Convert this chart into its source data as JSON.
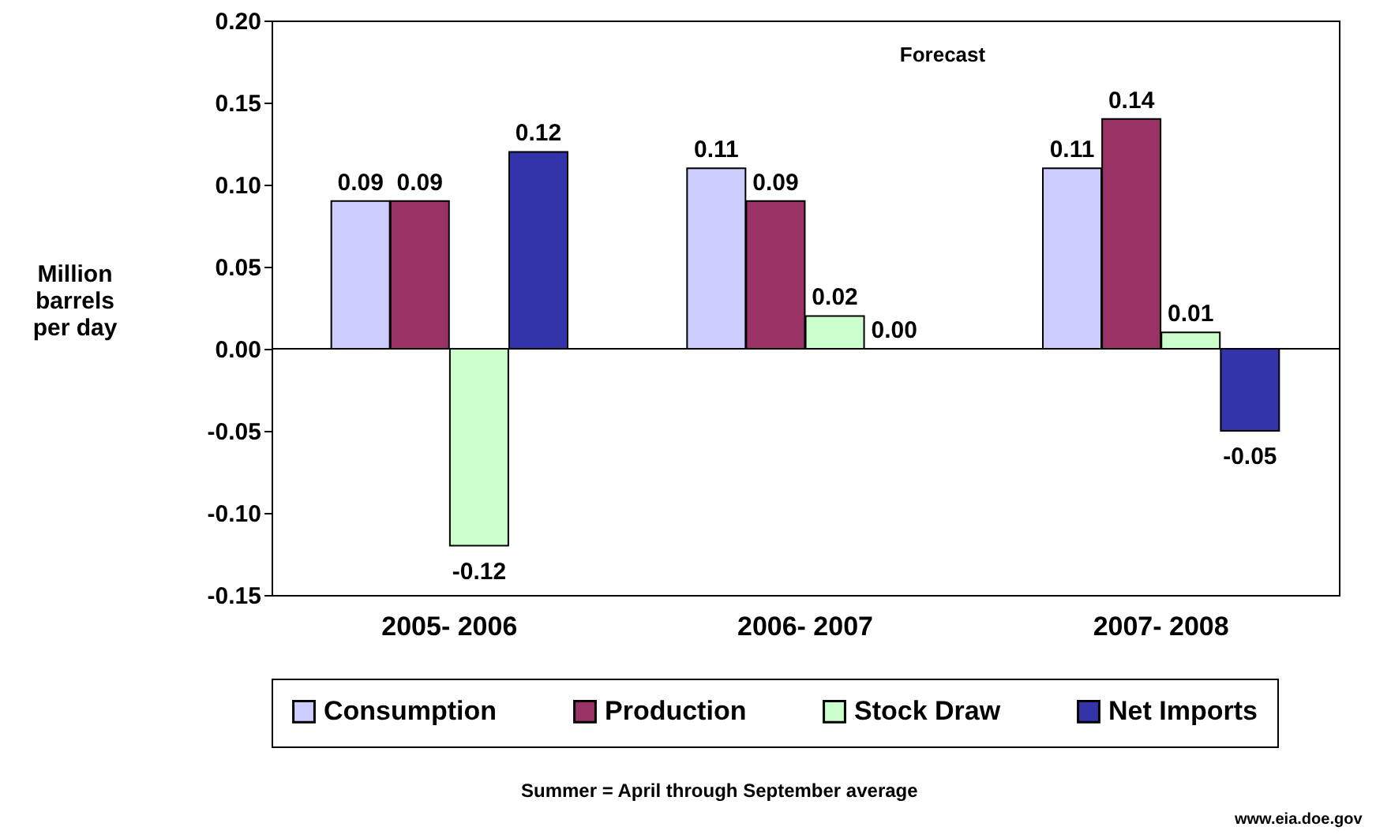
{
  "chart_data": {
    "type": "bar",
    "ylabel": "Million barrels per day",
    "categories": [
      "2005- 2006",
      "2006- 2007",
      "2007- 2008"
    ],
    "series": [
      {
        "name": "Consumption",
        "color": "#ccccff",
        "values": [
          0.09,
          0.11,
          0.11
        ],
        "value_labels": [
          "0.09",
          "0.11",
          "0.11"
        ]
      },
      {
        "name": "Production",
        "color": "#993366",
        "values": [
          0.09,
          0.09,
          0.14
        ],
        "value_labels": [
          "0.09",
          "0.09",
          "0.14"
        ]
      },
      {
        "name": "Stock Draw",
        "color": "#ccffcc",
        "values": [
          -0.12,
          0.02,
          0.01
        ],
        "value_labels": [
          "-0.12",
          "0.02",
          "0.01"
        ]
      },
      {
        "name": "Net Imports",
        "color": "#3333aa",
        "values": [
          0.12,
          0.0,
          -0.05
        ],
        "value_labels": [
          "0.12",
          "0.00",
          "-0.05"
        ]
      }
    ],
    "ylim": [
      -0.15,
      0.2
    ],
    "yticks": [
      {
        "value": -0.15,
        "label": "-0.15"
      },
      {
        "value": -0.1,
        "label": "-0.10"
      },
      {
        "value": -0.05,
        "label": "-0.05"
      },
      {
        "value": 0,
        "label": "0.00"
      },
      {
        "value": 0.05,
        "label": "0.05"
      },
      {
        "value": 0.1,
        "label": "0.10"
      },
      {
        "value": 0.15,
        "label": "0.15"
      },
      {
        "value": 0.2,
        "label": "0.20"
      }
    ],
    "grid": false,
    "legend": "bottom",
    "ref_lines": [
      {
        "axis": "y",
        "value": 0,
        "color": "#000000"
      }
    ],
    "annotations": [
      "Forecast",
      "Summer = April through September average",
      "www.eia.doe.gov"
    ]
  }
}
